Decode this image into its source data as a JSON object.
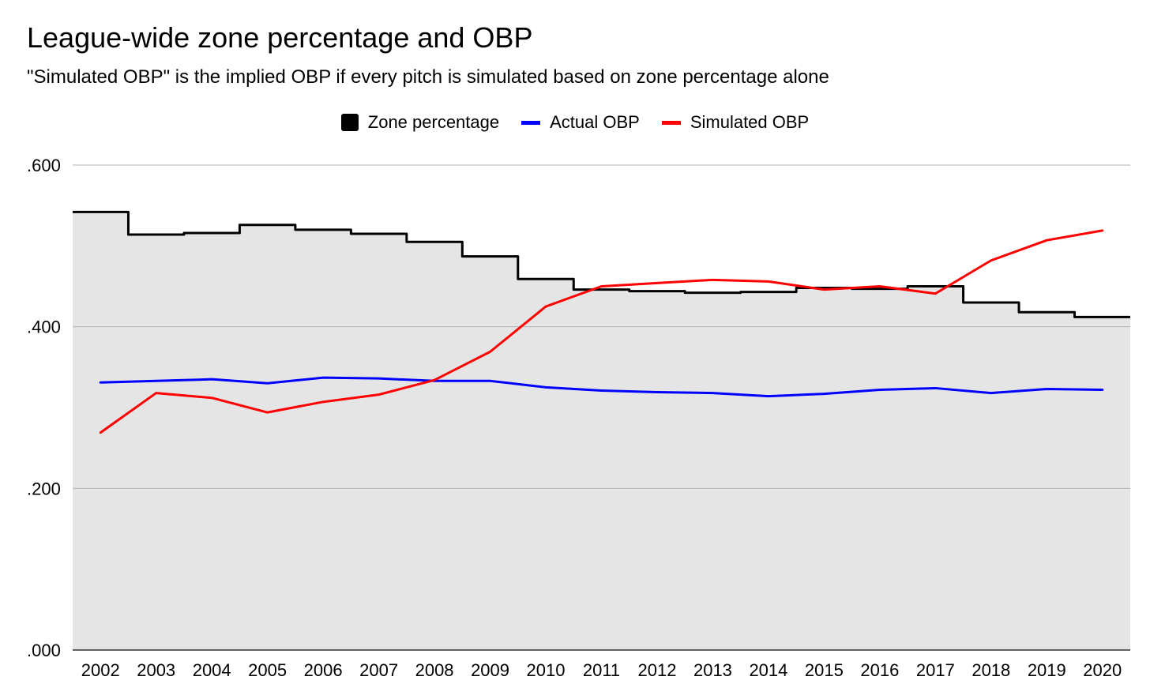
{
  "chart_data": {
    "type": "line",
    "title": "League-wide zone percentage and OBP",
    "subtitle": "\"Simulated OBP\" is the implied OBP if every pitch is simulated based on zone percentage alone",
    "categories": [
      "2002",
      "2003",
      "2004",
      "2005",
      "2006",
      "2007",
      "2008",
      "2009",
      "2010",
      "2011",
      "2012",
      "2013",
      "2014",
      "2015",
      "2016",
      "2017",
      "2018",
      "2019",
      "2020"
    ],
    "ylim": [
      0,
      0.6
    ],
    "yticks": [
      ".000",
      ".200",
      ".400",
      ".600"
    ],
    "yticks_values": [
      0,
      0.2,
      0.4,
      0.6
    ],
    "grid": true,
    "legend_placement": "top-center",
    "series": [
      {
        "name": "Zone percentage",
        "kind": "stepped-area",
        "color": "#000000",
        "fill": "#e5e5e5",
        "values": [
          0.542,
          0.514,
          0.516,
          0.526,
          0.52,
          0.515,
          0.505,
          0.487,
          0.459,
          0.446,
          0.444,
          0.442,
          0.443,
          0.448,
          0.447,
          0.45,
          0.43,
          0.418,
          0.412
        ]
      },
      {
        "name": "Actual OBP",
        "kind": "line",
        "color": "#0000ff",
        "values": [
          0.331,
          0.333,
          0.335,
          0.33,
          0.337,
          0.336,
          0.333,
          0.333,
          0.325,
          0.321,
          0.319,
          0.318,
          0.314,
          0.317,
          0.322,
          0.324,
          0.318,
          0.323,
          0.322
        ]
      },
      {
        "name": "Simulated OBP",
        "kind": "line",
        "color": "#ff0000",
        "values": [
          0.269,
          0.318,
          0.312,
          0.294,
          0.307,
          0.316,
          0.334,
          0.369,
          0.425,
          0.45,
          0.454,
          0.458,
          0.456,
          0.446,
          0.45,
          0.441,
          0.482,
          0.507,
          0.519
        ]
      }
    ]
  }
}
